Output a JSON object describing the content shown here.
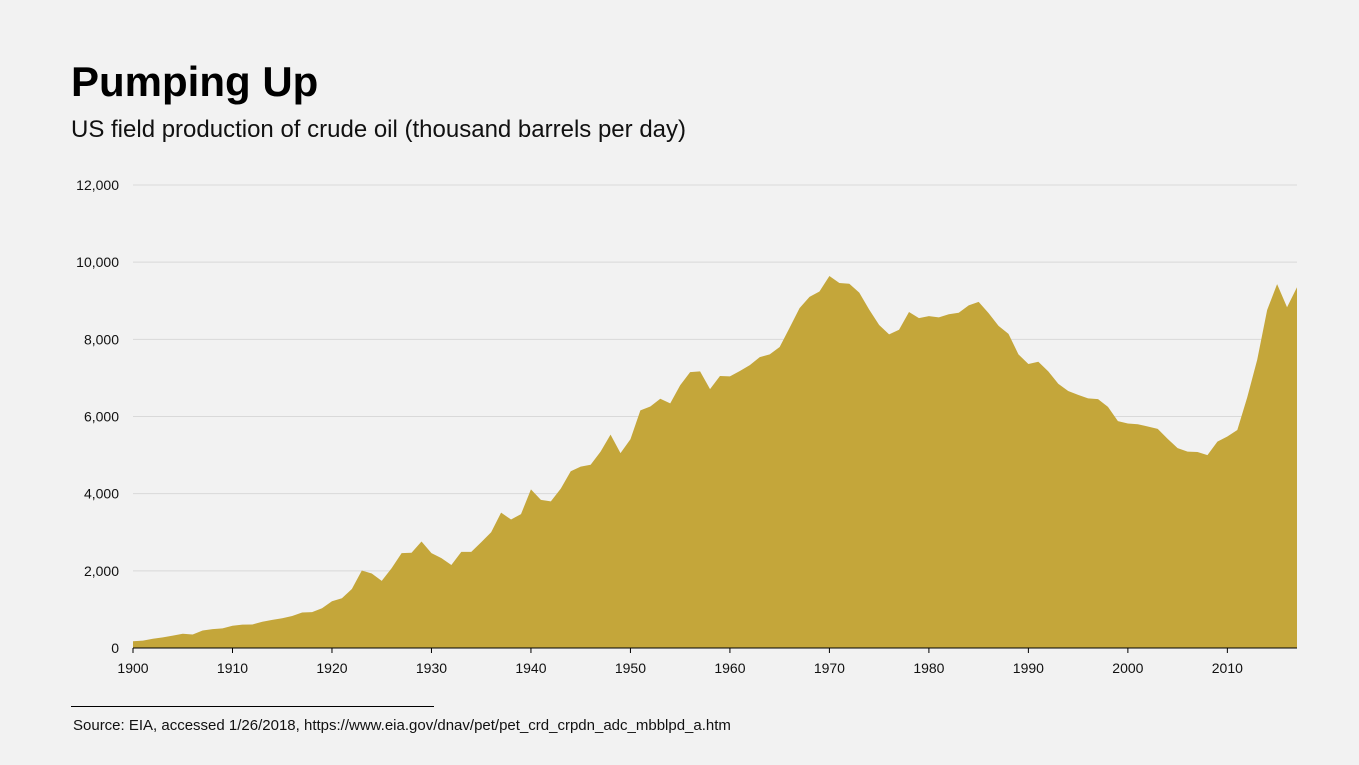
{
  "title": "Pumping Up",
  "subtitle": "US field production of crude oil (thousand barrels per day)",
  "source": "Source: EIA, accessed 1/26/2018, https://www.eia.gov/dnav/pet/pet_crd_crpdn_adc_mbblpd_a.htm",
  "colors": {
    "area": "#c4a63a",
    "grid": "#d9d9d9",
    "axis": "#000000",
    "background": "#f2f2f2"
  },
  "chart_data": {
    "type": "area",
    "title": "Pumping Up",
    "subtitle": "US field production of crude oil (thousand barrels per day)",
    "xlabel": "",
    "ylabel": "",
    "xlim": [
      1900,
      2017
    ],
    "ylim": [
      0,
      12000
    ],
    "grid": true,
    "legend": "none",
    "x_ticks": [
      1900,
      1910,
      1920,
      1930,
      1940,
      1950,
      1960,
      1970,
      1980,
      1990,
      2000,
      2010
    ],
    "x_tick_labels": [
      "1900",
      "1910",
      "1920",
      "1930",
      "1940",
      "1950",
      "1960",
      "1970",
      "1980",
      "1990",
      "2000",
      "2010"
    ],
    "y_ticks": [
      0,
      2000,
      4000,
      6000,
      8000,
      10000,
      12000
    ],
    "y_tick_labels": [
      "0",
      "2,000",
      "4,000",
      "6,000",
      "8,000",
      "10,000",
      "12,000"
    ],
    "x": [
      1900,
      1901,
      1902,
      1903,
      1904,
      1905,
      1906,
      1907,
      1908,
      1909,
      1910,
      1911,
      1912,
      1913,
      1914,
      1915,
      1916,
      1917,
      1918,
      1919,
      1920,
      1921,
      1922,
      1923,
      1924,
      1925,
      1926,
      1927,
      1928,
      1929,
      1930,
      1931,
      1932,
      1933,
      1934,
      1935,
      1936,
      1937,
      1938,
      1939,
      1940,
      1941,
      1942,
      1943,
      1944,
      1945,
      1946,
      1947,
      1948,
      1949,
      1950,
      1951,
      1952,
      1953,
      1954,
      1955,
      1956,
      1957,
      1958,
      1959,
      1960,
      1961,
      1962,
      1963,
      1964,
      1965,
      1966,
      1967,
      1968,
      1969,
      1970,
      1971,
      1972,
      1973,
      1974,
      1975,
      1976,
      1977,
      1978,
      1979,
      1980,
      1981,
      1982,
      1983,
      1984,
      1985,
      1986,
      1987,
      1988,
      1989,
      1990,
      1991,
      1992,
      1993,
      1994,
      1995,
      1996,
      1997,
      1998,
      1999,
      2000,
      2001,
      2002,
      2003,
      2004,
      2005,
      2006,
      2007,
      2008,
      2009,
      2010,
      2011,
      2012,
      2013,
      2014,
      2015,
      2016,
      2017
    ],
    "values": [
      175,
      190,
      240,
      275,
      320,
      370,
      350,
      455,
      490,
      510,
      575,
      605,
      610,
      680,
      730,
      770,
      830,
      920,
      930,
      1030,
      1210,
      1290,
      1530,
      2010,
      1930,
      1740,
      2070,
      2460,
      2470,
      2760,
      2460,
      2330,
      2150,
      2490,
      2490,
      2740,
      3000,
      3510,
      3330,
      3470,
      4110,
      3840,
      3800,
      4130,
      4580,
      4700,
      4750,
      5090,
      5530,
      5050,
      5410,
      6160,
      6260,
      6460,
      6340,
      6810,
      7150,
      7170,
      6710,
      7050,
      7040,
      7180,
      7330,
      7540,
      7610,
      7800,
      8300,
      8810,
      9100,
      9240,
      9640,
      9460,
      9440,
      9210,
      8770,
      8370,
      8130,
      8250,
      8710,
      8550,
      8600,
      8570,
      8650,
      8690,
      8880,
      8970,
      8680,
      8350,
      8140,
      7610,
      7360,
      7420,
      7170,
      6850,
      6660,
      6560,
      6470,
      6450,
      6250,
      5880,
      5820,
      5800,
      5740,
      5680,
      5420,
      5180,
      5090,
      5080,
      5000,
      5350,
      5480,
      5650,
      6500,
      7470,
      8760,
      9430,
      8830,
      9350
    ]
  }
}
